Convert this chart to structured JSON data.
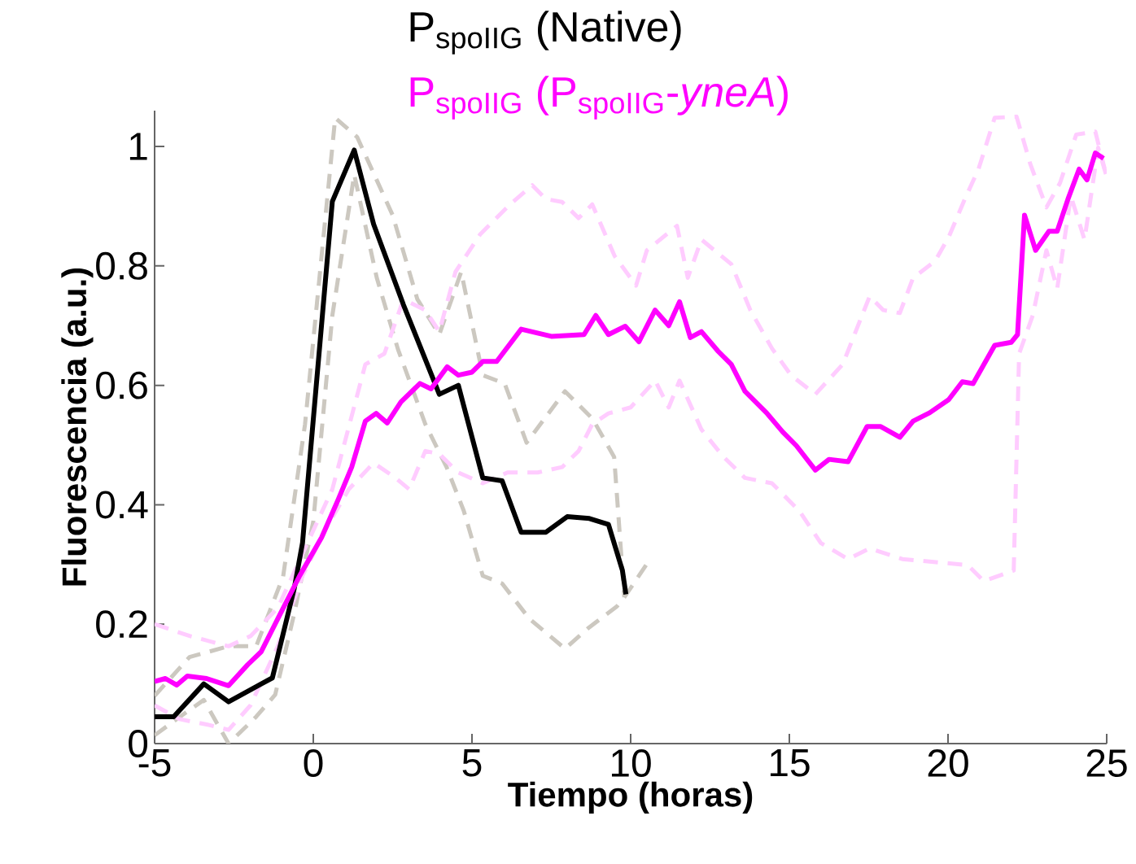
{
  "chart_data": {
    "type": "line",
    "xlabel": "Tiempo (horas)",
    "ylabel": "Fluorescencia (a.u.)",
    "xlim": [
      -5,
      25
    ],
    "ylim": [
      0,
      1.06
    ],
    "xticks": [
      -5,
      0,
      5,
      10,
      15,
      20,
      25
    ],
    "yticks": [
      0,
      0.2,
      0.4,
      0.6,
      0.8,
      1
    ],
    "grid": false,
    "legend": "top",
    "series": [
      {
        "color": "#ccc8c0",
        "line_style": "dashed",
        "x": [
          -5,
          -3.9,
          -2.67,
          -1.8,
          -0.95,
          -0.26,
          0.69,
          1.38,
          2.5,
          3.28,
          3.97,
          4.66,
          5.34,
          6.03,
          6.72,
          7.93,
          8.8,
          9.48,
          9.8
        ],
        "values": [
          0.08,
          0.145,
          0.163,
          0.163,
          0.28,
          0.535,
          1.048,
          1.016,
          0.885,
          0.744,
          0.685,
          0.79,
          0.617,
          0.603,
          0.504,
          0.59,
          0.544,
          0.48,
          0.245
        ]
      },
      {
        "color": "#ccc8c0",
        "line_style": "dashed",
        "x": [
          -5,
          -4.2,
          -3.45,
          -2.67,
          -1.8,
          -1.2,
          -0.6,
          0,
          0.6,
          1.29,
          2.0,
          2.67,
          3.53,
          4.2,
          4.74,
          5.34,
          5.95,
          6.81,
          7.93,
          8.7,
          9.57,
          9.8,
          10.5
        ],
        "values": [
          0.014,
          0.045,
          0.073,
          0.0,
          0.045,
          0.082,
          0.218,
          0.372,
          0.717,
          0.953,
          0.78,
          0.66,
          0.535,
          0.463,
          0.39,
          0.281,
          0.268,
          0.209,
          0.159,
          0.195,
          0.23,
          0.245,
          0.3
        ]
      },
      {
        "color": "#ffccff",
        "line_style": "dashed",
        "x": [
          -5,
          -3.88,
          -2.67,
          -1.98,
          -1.12,
          -0.26,
          0.6,
          1.64,
          2.24,
          2.84,
          3.53,
          3.97,
          4.48,
          5.26,
          6.2,
          6.9,
          7.33,
          7.84,
          8.36,
          8.79,
          9.49,
          10.17,
          10.51,
          11.46,
          11.8,
          12.23,
          13.17,
          13.77,
          14.45,
          15.05,
          15.82,
          16.68,
          17.53,
          17.96,
          18.48,
          18.9,
          19.59,
          20.02,
          20.53,
          20.96,
          21.47,
          22.16,
          22.59,
          23.1,
          23.53,
          24.04,
          24.64,
          24.98
        ],
        "values": [
          0.2,
          0.18,
          0.163,
          0.18,
          0.227,
          0.327,
          0.426,
          0.635,
          0.653,
          0.744,
          0.726,
          0.69,
          0.79,
          0.853,
          0.903,
          0.935,
          0.912,
          0.907,
          0.88,
          0.903,
          0.817,
          0.767,
          0.826,
          0.867,
          0.78,
          0.844,
          0.803,
          0.726,
          0.662,
          0.617,
          0.585,
          0.635,
          0.749,
          0.726,
          0.721,
          0.78,
          0.808,
          0.848,
          0.912,
          0.962,
          1.048,
          1.05,
          0.971,
          0.898,
          0.939,
          1.02,
          1.025,
          0.953
        ]
      },
      {
        "color": "#ffccff",
        "line_style": "dashed",
        "x": [
          -5,
          -4.22,
          -3.36,
          -2.67,
          -1.98,
          -1.12,
          -0.34,
          0.43,
          1.12,
          1.9,
          2.59,
          3.02,
          3.53,
          3.97,
          4.57,
          5.34,
          6.12,
          7.07,
          7.84,
          8.36,
          8.79,
          9.3,
          10.0,
          10.77,
          11.2,
          11.54,
          12.23,
          12.91,
          13.6,
          14.45,
          15.31,
          15.99,
          16.85,
          17.53,
          18.56,
          19.59,
          20.62,
          21.13,
          22.07,
          22.24,
          22.67,
          23.1,
          23.44,
          23.87,
          24.3,
          24.73,
          24.98
        ],
        "values": [
          0.064,
          0.041,
          0.032,
          0.023,
          0.064,
          0.163,
          0.281,
          0.363,
          0.426,
          0.47,
          0.445,
          0.426,
          0.49,
          0.485,
          0.454,
          0.436,
          0.454,
          0.454,
          0.463,
          0.49,
          0.535,
          0.553,
          0.563,
          0.608,
          0.563,
          0.608,
          0.526,
          0.481,
          0.445,
          0.436,
          0.39,
          0.336,
          0.309,
          0.327,
          0.309,
          0.304,
          0.299,
          0.272,
          0.29,
          0.653,
          0.717,
          0.826,
          0.762,
          0.917,
          0.844,
          0.998,
          0.953
        ]
      },
      {
        "name": "P$_{spoIIG}$ (Native)",
        "color": "#000000",
        "line_style": "solid",
        "x": [
          -5,
          -4.4,
          -3.45,
          -2.67,
          -1.64,
          -1.29,
          -0.6,
          -0.34,
          0.6,
          1.29,
          1.9,
          2.84,
          3.97,
          4.57,
          5.34,
          5.95,
          6.55,
          7.33,
          8.0,
          8.7,
          9.3,
          9.74,
          9.85
        ],
        "values": [
          0.045,
          0.045,
          0.1,
          0.07,
          0.1,
          0.11,
          0.26,
          0.336,
          0.908,
          0.994,
          0.87,
          0.735,
          0.585,
          0.6,
          0.445,
          0.44,
          0.354,
          0.354,
          0.38,
          0.377,
          0.367,
          0.29,
          0.25
        ]
      },
      {
        "name": "P$_{spoIIG}$ (P$_{spoIIG}$-*yneA*)",
        "color": "#ff00ff",
        "line_style": "solid",
        "x": [
          -5,
          -4.66,
          -4.3,
          -3.97,
          -3.36,
          -2.67,
          -2.07,
          -1.64,
          -1.12,
          -0.43,
          0.26,
          0.78,
          1.21,
          1.64,
          1.98,
          2.33,
          2.76,
          3.36,
          3.71,
          4.22,
          4.57,
          5.0,
          5.34,
          5.78,
          6.55,
          7.5,
          8.53,
          8.9,
          9.3,
          9.83,
          10.26,
          10.77,
          11.2,
          11.54,
          11.88,
          12.23,
          12.74,
          13.17,
          13.6,
          14.28,
          14.79,
          15.22,
          15.82,
          16.25,
          16.85,
          17.45,
          17.88,
          18.48,
          18.9,
          19.42,
          20.02,
          20.45,
          20.79,
          21.47,
          21.99,
          22.19,
          22.41,
          22.76,
          23.18,
          23.44,
          23.78,
          24.13,
          24.38,
          24.64,
          24.9
        ],
        "values": [
          0.104,
          0.109,
          0.098,
          0.113,
          0.109,
          0.097,
          0.132,
          0.154,
          0.209,
          0.281,
          0.345,
          0.408,
          0.463,
          0.54,
          0.553,
          0.537,
          0.572,
          0.603,
          0.594,
          0.631,
          0.617,
          0.622,
          0.64,
          0.64,
          0.694,
          0.682,
          0.685,
          0.717,
          0.685,
          0.699,
          0.673,
          0.726,
          0.7,
          0.74,
          0.68,
          0.69,
          0.658,
          0.635,
          0.59,
          0.554,
          0.522,
          0.499,
          0.458,
          0.476,
          0.472,
          0.531,
          0.531,
          0.513,
          0.54,
          0.554,
          0.576,
          0.606,
          0.603,
          0.667,
          0.672,
          0.685,
          0.885,
          0.826,
          0.858,
          0.858,
          0.912,
          0.962,
          0.944,
          0.989,
          0.98
        ]
      }
    ]
  }
}
